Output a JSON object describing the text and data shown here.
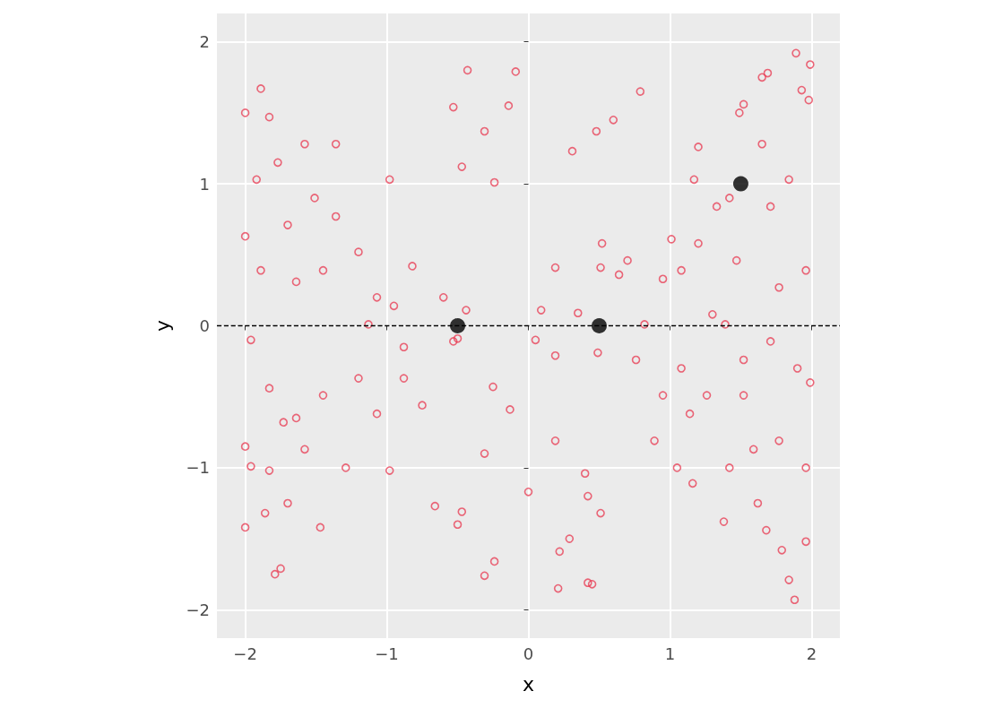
{
  "chart_data": {
    "type": "scatter",
    "xlabel": "x",
    "ylabel": "y",
    "xlim": [
      -2.2,
      2.2
    ],
    "ylim": [
      -2.2,
      2.2
    ],
    "xticks": [
      {
        "value": -2,
        "label": "−2"
      },
      {
        "value": -1,
        "label": "−1"
      },
      0,
      1,
      2
    ],
    "yticks": [
      {
        "value": -2,
        "label": "−2"
      },
      {
        "value": -1,
        "label": "−1"
      },
      0,
      1,
      2
    ],
    "grid": true,
    "marker": "circle",
    "ref_lines": [
      {
        "axis": "y",
        "value": 0,
        "label": null,
        "color": "#000000",
        "line_style": "dashed"
      }
    ],
    "series": [
      {
        "color": "#e8374f",
        "x": [
          -2.0,
          -1.89,
          -2,
          -2,
          -2,
          -1.96,
          -1.79,
          -1.75,
          -1.86,
          -1.83,
          -1.64,
          -1.7,
          -1.58,
          -1.36,
          -1.36,
          -1.47,
          -1.29,
          -1.13,
          -0.98,
          -0.98,
          -0.82,
          -0.75,
          -0.66,
          -0.6,
          -0.53,
          -0.5,
          -0.44,
          -0.43,
          -0.47,
          -0.53,
          -0.5,
          -0.47,
          -0.31,
          -0.31,
          -0.24,
          -0.25,
          -0.24,
          -0.14,
          -0.13,
          -0.09,
          -0.31,
          -1.83,
          -1.96,
          -1.64,
          -1.83,
          -1.51,
          -1.45,
          -1.2,
          -1.07,
          -0.95,
          -1.2,
          -1.07,
          -0.88,
          -1.45,
          -1.58,
          -1.7,
          -1.73,
          -1.89,
          -1.92,
          -1.77,
          -0.88,
          0.0,
          0.05,
          0.09,
          0.19,
          0.19,
          0.19,
          0.21,
          0.22,
          0.29,
          0.31,
          0.35,
          0.4,
          0.42,
          0.42,
          0.45,
          0.48,
          0.51,
          0.49,
          0.51,
          0.52,
          0.6,
          0.64,
          0.7,
          0.79,
          0.82,
          0.76,
          0.89,
          0.95,
          1.01,
          1.05,
          1.08,
          1.17,
          1.2,
          1.16,
          1.26,
          1.3,
          1.33,
          1.38,
          1.42,
          1.49,
          1.52,
          1.47,
          1.52,
          1.59,
          1.62,
          1.65,
          1.69,
          1.68,
          1.71,
          1.77,
          1.77,
          1.79,
          1.84,
          1.88,
          1.89,
          1.93,
          1.98,
          1.99,
          1.99,
          1.96,
          1.96,
          1.9,
          1.84,
          1.65,
          1.42,
          1.2,
          1.08,
          0.95,
          1.14,
          1.39,
          1.96,
          1.71,
          1.52
        ],
        "values": [
          1.5,
          1.67,
          0.63,
          -0.85,
          -1.42,
          -0.99,
          -1.75,
          -1.71,
          -1.32,
          -1.02,
          -0.65,
          0.71,
          1.28,
          0.77,
          1.28,
          -1.42,
          -1.0,
          0.01,
          1.03,
          -1.02,
          0.42,
          -0.56,
          -1.27,
          0.2,
          -0.11,
          -0.09,
          0.11,
          1.8,
          1.12,
          1.54,
          -1.4,
          -1.31,
          -1.76,
          1.37,
          -1.66,
          -0.43,
          1.01,
          1.55,
          -0.59,
          1.79,
          -0.9,
          -0.44,
          -0.1,
          0.31,
          1.47,
          0.9,
          0.39,
          0.52,
          0.2,
          0.14,
          -0.37,
          -0.62,
          -0.37,
          -0.49,
          -0.87,
          -1.25,
          -0.68,
          0.39,
          1.03,
          1.15,
          -0.15,
          -1.17,
          -0.1,
          0.11,
          0.41,
          -0.21,
          -0.81,
          -1.85,
          -1.59,
          -1.5,
          1.23,
          0.09,
          -1.04,
          -1.2,
          -1.81,
          -1.82,
          1.37,
          0.41,
          -0.19,
          -1.32,
          0.58,
          1.45,
          0.36,
          0.46,
          1.65,
          0.01,
          -0.24,
          -0.81,
          0.33,
          0.61,
          -1.0,
          -0.3,
          1.03,
          1.26,
          -1.11,
          -0.49,
          0.08,
          0.84,
          -1.38,
          -1.0,
          1.5,
          1.56,
          0.46,
          -0.49,
          -0.87,
          -1.25,
          1.75,
          1.78,
          -1.44,
          0.84,
          0.27,
          -0.81,
          -1.58,
          -1.79,
          -1.93,
          1.92,
          1.66,
          1.59,
          1.84,
          -0.4,
          -1.0,
          -1.52,
          -0.3,
          1.03,
          1.28,
          0.9,
          0.58,
          0.39,
          -0.49,
          -0.62,
          0.01,
          0.39,
          -0.11,
          -0.24
        ]
      },
      {
        "color": "#000000",
        "x": [
          -0.5,
          0.5,
          1.5
        ],
        "values": [
          0,
          0,
          1
        ]
      }
    ]
  }
}
